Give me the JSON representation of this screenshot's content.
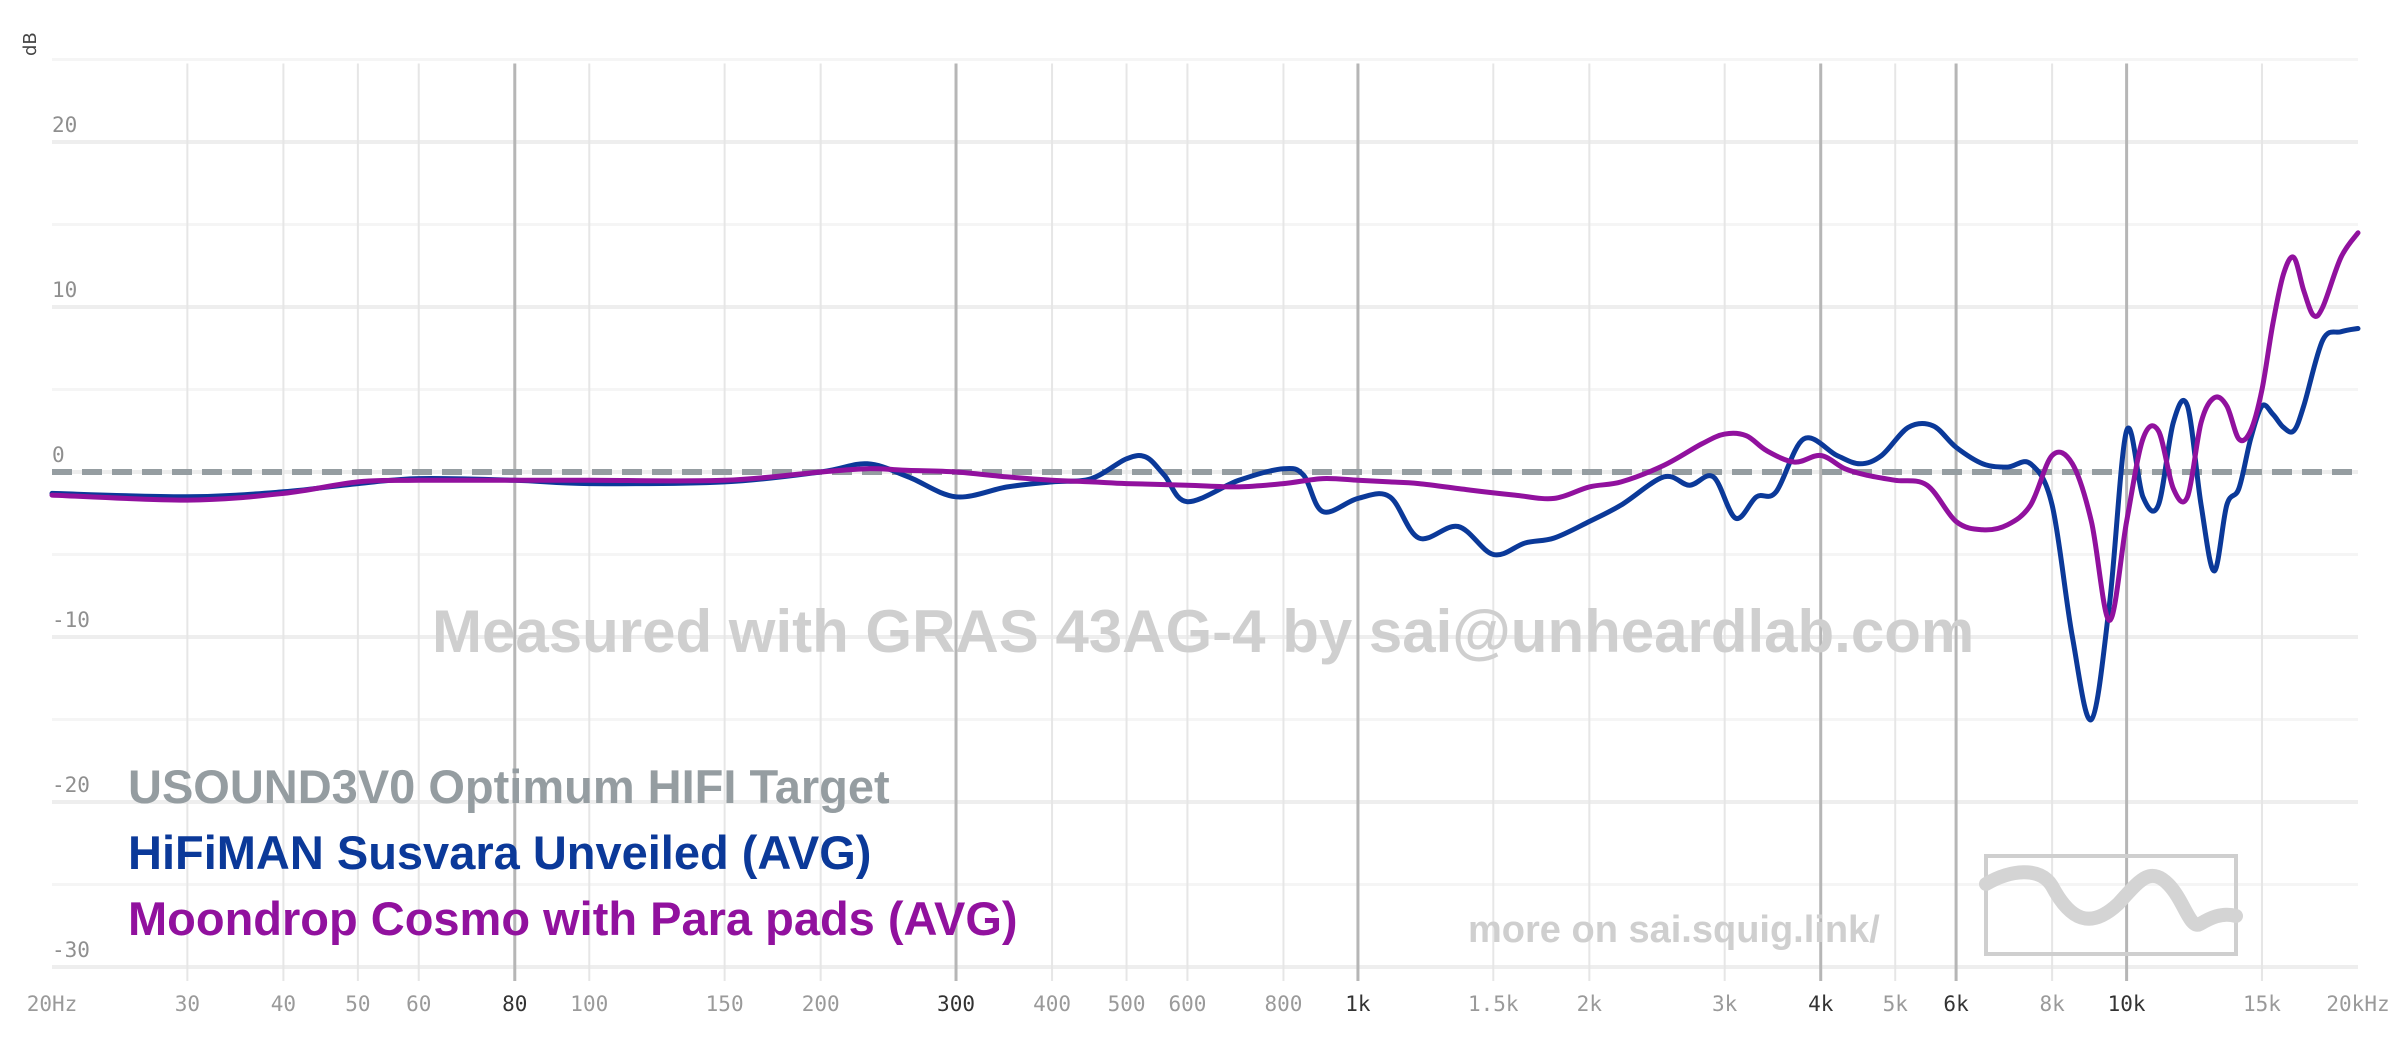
{
  "chart_data": {
    "type": "line",
    "ylabel": "dB",
    "xscale": "log",
    "xlim": [
      20,
      20000
    ],
    "ylim": [
      -30,
      25
    ],
    "grid": true,
    "legend_placement": "bottom-left",
    "y_ticks": [
      {
        "value": 20,
        "label": "20"
      },
      {
        "value": 10,
        "label": "10"
      },
      {
        "value": 0,
        "label": "0"
      },
      {
        "value": -10,
        "label": "-10"
      },
      {
        "value": -20,
        "label": "-20"
      },
      {
        "value": -30,
        "label": "-30"
      }
    ],
    "x_ticks": [
      {
        "value": 20,
        "label": "20Hz",
        "major": false
      },
      {
        "value": 30,
        "label": "30",
        "major": false
      },
      {
        "value": 40,
        "label": "40",
        "major": false
      },
      {
        "value": 50,
        "label": "50",
        "major": false
      },
      {
        "value": 60,
        "label": "60",
        "major": false
      },
      {
        "value": 80,
        "label": "80",
        "major": true
      },
      {
        "value": 100,
        "label": "100",
        "major": false
      },
      {
        "value": 150,
        "label": "150",
        "major": false
      },
      {
        "value": 200,
        "label": "200",
        "major": false
      },
      {
        "value": 300,
        "label": "300",
        "major": true
      },
      {
        "value": 400,
        "label": "400",
        "major": false
      },
      {
        "value": 500,
        "label": "500",
        "major": false
      },
      {
        "value": 600,
        "label": "600",
        "major": false
      },
      {
        "value": 800,
        "label": "800",
        "major": false
      },
      {
        "value": 1000,
        "label": "1k",
        "major": true
      },
      {
        "value": 1500,
        "label": "1.5k",
        "major": false
      },
      {
        "value": 2000,
        "label": "2k",
        "major": false
      },
      {
        "value": 3000,
        "label": "3k",
        "major": false
      },
      {
        "value": 4000,
        "label": "4k",
        "major": true
      },
      {
        "value": 5000,
        "label": "5k",
        "major": false
      },
      {
        "value": 6000,
        "label": "6k",
        "major": true
      },
      {
        "value": 8000,
        "label": "8k",
        "major": false
      },
      {
        "value": 10000,
        "label": "10k",
        "major": true
      },
      {
        "value": 15000,
        "label": "15k",
        "major": false
      },
      {
        "value": 20000,
        "label": "20kHz",
        "major": false
      }
    ],
    "series": [
      {
        "name": "USOUND3V0 Optimum HIFI Target",
        "color": "#959da1",
        "style": "dashed",
        "x": [
          20,
          20000
        ],
        "y": [
          0,
          0
        ]
      },
      {
        "name": "HiFiMAN Susvara Unveiled (AVG)",
        "color": "#0b3999",
        "style": "solid",
        "x": [
          20,
          30,
          40,
          50,
          60,
          80,
          100,
          150,
          200,
          230,
          260,
          300,
          350,
          400,
          450,
          500,
          530,
          560,
          600,
          700,
          800,
          850,
          900,
          1000,
          1100,
          1200,
          1350,
          1500,
          1650,
          1800,
          2000,
          2200,
          2500,
          2700,
          2900,
          3100,
          3300,
          3500,
          3800,
          4200,
          4500,
          4800,
          5200,
          5600,
          6000,
          6500,
          7000,
          7500,
          8000,
          8500,
          9000,
          9500,
          10000,
          10500,
          11000,
          11500,
          12000,
          12500,
          13000,
          13500,
          14000,
          14500,
          15000,
          15500,
          16000,
          16500,
          17000,
          18000,
          19000,
          20000
        ],
        "y": [
          -1.3,
          -1.5,
          -1.2,
          -0.7,
          -0.4,
          -0.5,
          -0.7,
          -0.6,
          0.0,
          0.5,
          -0.3,
          -1.5,
          -0.9,
          -0.6,
          -0.4,
          0.8,
          0.9,
          -0.2,
          -1.8,
          -0.5,
          0.2,
          -0.2,
          -2.4,
          -1.6,
          -1.5,
          -4.0,
          -3.3,
          -5.0,
          -4.3,
          -4.0,
          -3.0,
          -2.0,
          -0.3,
          -0.8,
          -0.3,
          -2.8,
          -1.5,
          -1.2,
          2.0,
          1.0,
          0.5,
          1.0,
          2.7,
          2.8,
          1.5,
          0.5,
          0.3,
          0.5,
          -2.0,
          -10.0,
          -15.0,
          -8.0,
          2.5,
          -1.5,
          -2.0,
          3.0,
          4.0,
          -2.0,
          -6.0,
          -2.0,
          -1.0,
          2.0,
          4.0,
          3.5,
          2.7,
          2.5,
          4.0,
          8.0,
          8.5,
          8.7
        ]
      },
      {
        "name": "Moondrop Cosmo with Para pads (AVG)",
        "color": "#91119e",
        "style": "solid",
        "x": [
          20,
          30,
          40,
          50,
          60,
          80,
          100,
          150,
          200,
          230,
          260,
          300,
          350,
          400,
          450,
          500,
          600,
          700,
          800,
          900,
          1000,
          1100,
          1200,
          1400,
          1600,
          1800,
          2000,
          2200,
          2500,
          2800,
          3000,
          3200,
          3400,
          3700,
          4000,
          4300,
          4600,
          5000,
          5500,
          6000,
          6500,
          7000,
          7500,
          8000,
          8500,
          9000,
          9500,
          10000,
          10500,
          11000,
          11500,
          12000,
          12500,
          13000,
          13500,
          14000,
          14500,
          15000,
          15500,
          16000,
          16500,
          17000,
          17500,
          18000,
          19000,
          20000
        ],
        "y": [
          -1.4,
          -1.7,
          -1.3,
          -0.6,
          -0.5,
          -0.5,
          -0.5,
          -0.5,
          0.0,
          0.2,
          0.1,
          0.0,
          -0.3,
          -0.5,
          -0.6,
          -0.7,
          -0.8,
          -0.9,
          -0.7,
          -0.4,
          -0.5,
          -0.6,
          -0.7,
          -1.1,
          -1.4,
          -1.6,
          -0.9,
          -0.6,
          0.4,
          1.7,
          2.3,
          2.2,
          1.3,
          0.6,
          1.0,
          0.2,
          -0.2,
          -0.5,
          -0.8,
          -3.0,
          -3.5,
          -3.2,
          -2.0,
          1.0,
          0.5,
          -3.0,
          -9.0,
          -3.0,
          2.0,
          2.5,
          -1.0,
          -1.5,
          3.0,
          4.5,
          4.0,
          2.0,
          2.5,
          5.0,
          9.0,
          12.0,
          13.0,
          11.0,
          9.5,
          10.0,
          13.0,
          14.5
        ]
      }
    ],
    "annotations": {
      "watermark": "Measured with GRAS 43AG-4 by sai@unheardlab.com",
      "more_on": "more on sai.squig.link/"
    }
  }
}
